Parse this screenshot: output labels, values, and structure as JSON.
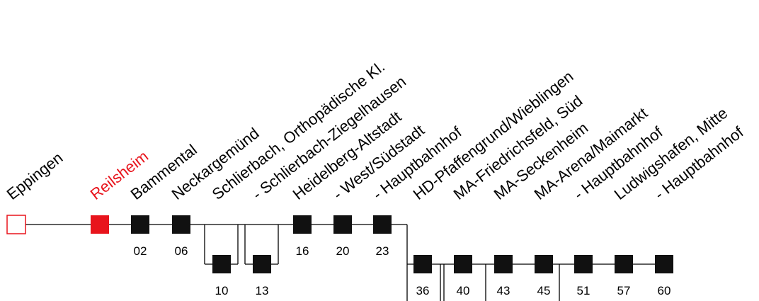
{
  "colors": {
    "line": "#000000",
    "stop": "#111111",
    "highlight": "#e8141c",
    "start_outline": "#e8141c"
  },
  "stops": [
    {
      "name": "Eppingen",
      "time": "",
      "style": "start-hollow"
    },
    {
      "name": "Reilsheim",
      "time": "",
      "style": "highlight"
    },
    {
      "name": "Bammental",
      "time": "02",
      "style": "normal"
    },
    {
      "name": "Neckargemünd",
      "time": "06",
      "style": "normal"
    },
    {
      "name": "Schlierbach, Orthopädische Kl.",
      "time": "10",
      "style": "normal"
    },
    {
      "name": "- Schlierbach-Ziegelhausen",
      "time": "13",
      "style": "normal"
    },
    {
      "name": "Heidelberg-Altstadt",
      "time": "16",
      "style": "normal"
    },
    {
      "name": "- West/Südstadt",
      "time": "20",
      "style": "normal"
    },
    {
      "name": "- Hauptbahnhof",
      "time": "23",
      "style": "normal"
    },
    {
      "name": "HD-Pfaffengrund/Wieblingen",
      "time": "36",
      "style": "normal"
    },
    {
      "name": "MA-Friedrichsfeld, Süd",
      "time": "40",
      "style": "normal"
    },
    {
      "name": "MA-Seckenheim",
      "time": "43",
      "style": "normal"
    },
    {
      "name": "MA-Arena/Maimarkt",
      "time": "45",
      "style": "normal"
    },
    {
      "name": "- Hauptbahnhof",
      "time": "51",
      "style": "normal"
    },
    {
      "name": "Ludwigshafen, Mitte",
      "time": "57",
      "style": "normal"
    },
    {
      "name": "- Hauptbahnhof",
      "time": "60",
      "style": "normal"
    }
  ]
}
